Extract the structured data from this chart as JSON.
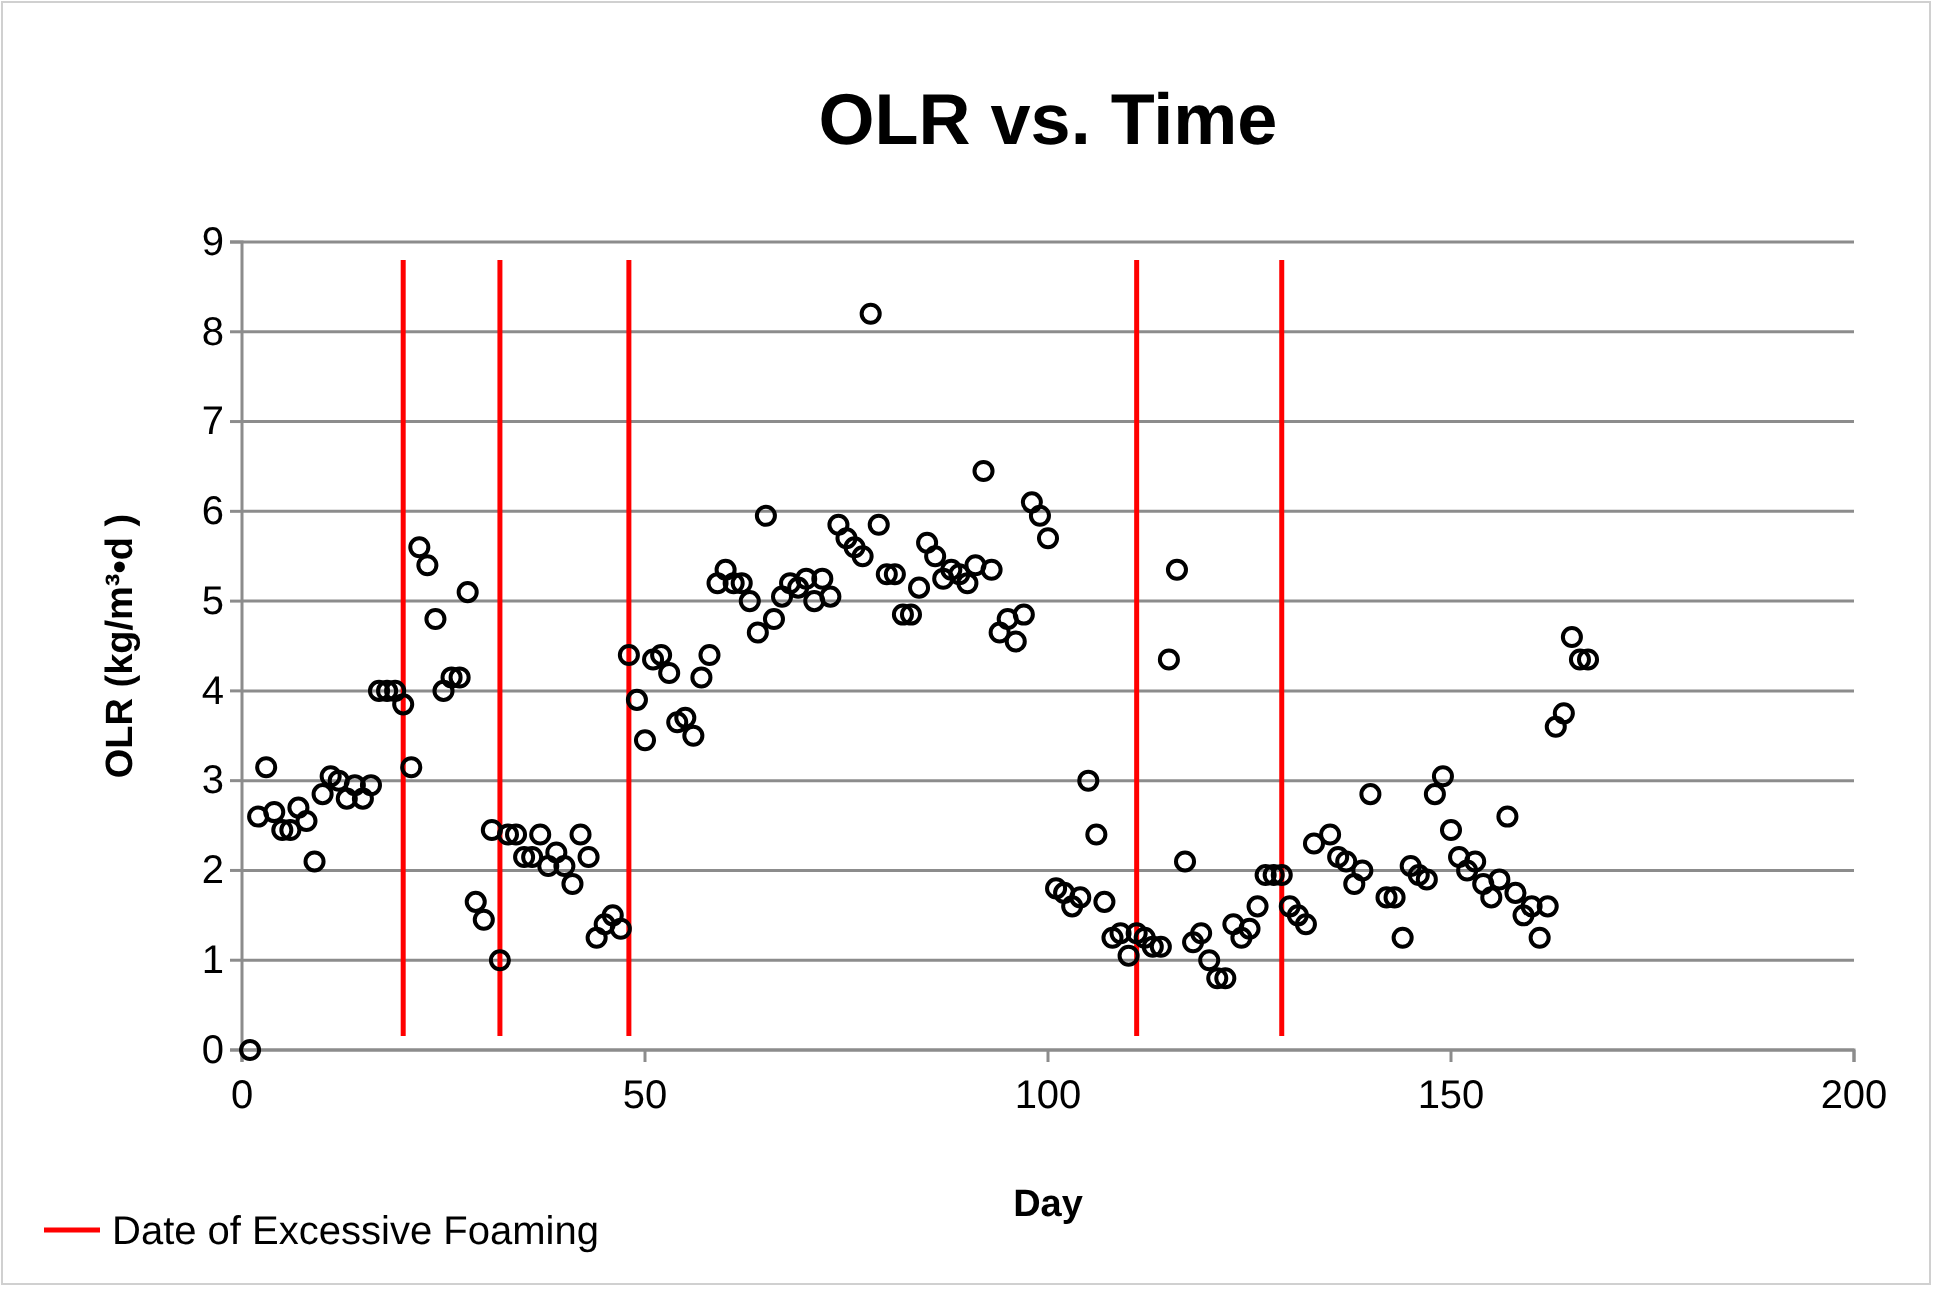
{
  "chart_data": {
    "type": "scatter",
    "title": "OLR vs. Time",
    "xlabel": "Day",
    "ylabel": "OLR (kg/m³•d )",
    "xlim": [
      0,
      200
    ],
    "xticks": [
      0,
      50,
      100,
      150,
      200
    ],
    "ylim": [
      0,
      9
    ],
    "yticks": [
      0,
      1,
      2,
      3,
      4,
      5,
      6,
      7,
      8,
      9
    ],
    "grid": "y",
    "marker": "circle",
    "legend": "bottom left",
    "series": [
      {
        "color": "#000000",
        "x": [
          1,
          2,
          3,
          4,
          5,
          6,
          7,
          8,
          9,
          10,
          11,
          12,
          13,
          14,
          15,
          16,
          17,
          18,
          19,
          20,
          21,
          22,
          23,
          24,
          25,
          26,
          27,
          28,
          29,
          30,
          31,
          32,
          33,
          34,
          35,
          36,
          37,
          38,
          39,
          40,
          41,
          42,
          43,
          44,
          45,
          46,
          47,
          48,
          49,
          50,
          51,
          52,
          53,
          54,
          55,
          56,
          57,
          58,
          59,
          60,
          61,
          62,
          63,
          64,
          65,
          66,
          67,
          68,
          69,
          70,
          71,
          72,
          73,
          74,
          75,
          76,
          77,
          78,
          79,
          80,
          81,
          82,
          83,
          84,
          85,
          86,
          87,
          88,
          89,
          90,
          91,
          92,
          93,
          94,
          95,
          96,
          97,
          98,
          99,
          100,
          101,
          102,
          103,
          104,
          105,
          106,
          107,
          108,
          109,
          110,
          111,
          112,
          113,
          114,
          115,
          116,
          117,
          118,
          119,
          120,
          121,
          122,
          123,
          124,
          125,
          126,
          127,
          128,
          129,
          130,
          131,
          132,
          133,
          135,
          136,
          137,
          138,
          139,
          140,
          142,
          143,
          144,
          145,
          146,
          147,
          148,
          149,
          150,
          151,
          152,
          153,
          154,
          155,
          156,
          157,
          158,
          159,
          160,
          161,
          162,
          163,
          164,
          165,
          166,
          167
        ],
        "values": [
          0,
          2.6,
          3.15,
          2.65,
          2.45,
          2.45,
          2.7,
          2.55,
          2.1,
          2.85,
          3.05,
          3,
          2.8,
          2.95,
          2.8,
          2.95,
          4,
          4,
          4,
          3.85,
          3.15,
          5.6,
          5.4,
          4.8,
          4,
          4.15,
          4.15,
          5.1,
          1.65,
          1.45,
          2.45,
          1,
          2.4,
          2.4,
          2.15,
          2.15,
          2.4,
          2.05,
          2.2,
          2.05,
          1.85,
          2.4,
          2.15,
          1.25,
          1.4,
          1.5,
          1.35,
          4.4,
          3.9,
          3.45,
          4.35,
          4.4,
          4.2,
          3.65,
          3.7,
          3.5,
          4.15,
          4.4,
          5.2,
          5.35,
          5.2,
          5.2,
          5,
          4.65,
          5.95,
          4.8,
          5.05,
          5.2,
          5.15,
          5.25,
          5,
          5.25,
          5.05,
          5.85,
          5.7,
          5.6,
          5.5,
          8.2,
          5.85,
          5.3,
          5.3,
          4.85,
          4.85,
          5.15,
          5.65,
          5.5,
          5.25,
          5.35,
          5.3,
          5.2,
          5.4,
          6.45,
          5.35,
          4.65,
          4.8,
          4.55,
          4.85,
          6.1,
          5.95,
          5.7,
          1.8,
          1.75,
          1.6,
          1.7,
          3,
          2.4,
          1.65,
          1.25,
          1.3,
          1.05,
          1.3,
          1.25,
          1.15,
          1.15,
          4.35,
          5.35,
          2.1,
          1.2,
          1.3,
          1,
          0.8,
          0.8,
          1.4,
          1.25,
          1.35,
          1.6,
          1.95,
          1.95,
          1.95,
          1.6,
          1.5,
          1.4,
          2.3,
          2.4,
          2.15,
          2.1,
          1.85,
          2,
          2.85,
          1.7,
          1.7,
          1.25,
          2.05,
          1.95,
          1.9,
          2.85,
          3.05,
          2.45,
          2.15,
          2,
          2.1,
          1.85,
          1.7,
          1.9,
          2.6,
          1.75,
          1.5,
          1.6,
          1.25,
          1.6,
          3.6,
          3.75,
          4.6,
          4.35,
          4.35
        ]
      }
    ],
    "ref_lines": [
      {
        "axis": "x",
        "value": 20,
        "label": "Date of Excessive Foaming",
        "color": "#ff0000"
      },
      {
        "axis": "x",
        "value": 32,
        "color": "#ff0000"
      },
      {
        "axis": "x",
        "value": 48,
        "color": "#ff0000"
      },
      {
        "axis": "x",
        "value": 111,
        "color": "#ff0000"
      },
      {
        "axis": "x",
        "value": 129,
        "color": "#ff0000"
      }
    ]
  }
}
